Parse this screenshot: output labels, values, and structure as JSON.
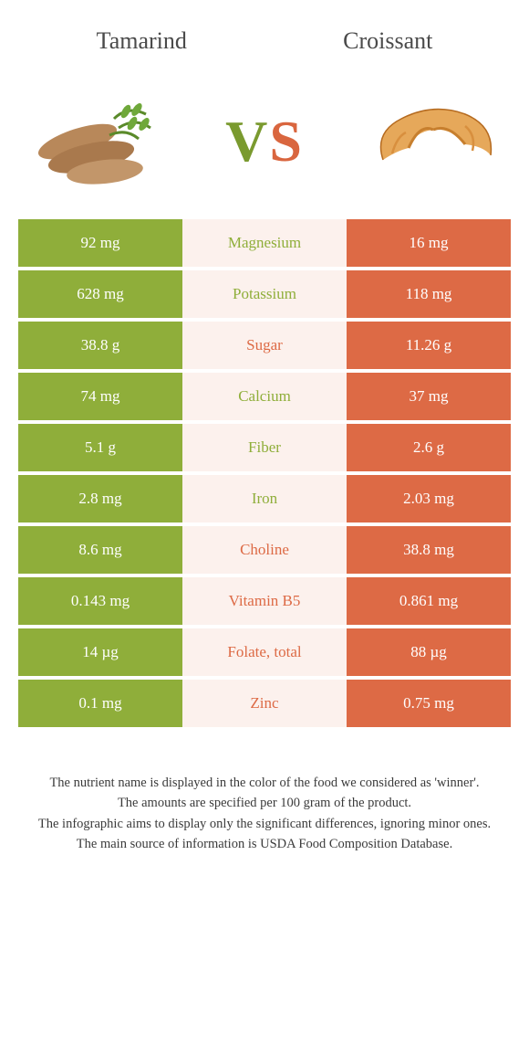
{
  "foodA": {
    "name": "Tamarind",
    "color": "#8fae3a"
  },
  "foodB": {
    "name": "Croissant",
    "color": "#dd6a45"
  },
  "vs": {
    "v_color": "#7a9a2f",
    "s_color": "#d9663f"
  },
  "mid_bg": "#fcf1ed",
  "rows": [
    {
      "nutrient": "Magnesium",
      "a": "92 mg",
      "b": "16 mg",
      "winner": "a"
    },
    {
      "nutrient": "Potassium",
      "a": "628 mg",
      "b": "118 mg",
      "winner": "a"
    },
    {
      "nutrient": "Sugar",
      "a": "38.8 g",
      "b": "11.26 g",
      "winner": "b"
    },
    {
      "nutrient": "Calcium",
      "a": "74 mg",
      "b": "37 mg",
      "winner": "a"
    },
    {
      "nutrient": "Fiber",
      "a": "5.1 g",
      "b": "2.6 g",
      "winner": "a"
    },
    {
      "nutrient": "Iron",
      "a": "2.8 mg",
      "b": "2.03 mg",
      "winner": "a"
    },
    {
      "nutrient": "Choline",
      "a": "8.6 mg",
      "b": "38.8 mg",
      "winner": "b"
    },
    {
      "nutrient": "Vitamin B5",
      "a": "0.143 mg",
      "b": "0.861 mg",
      "winner": "b"
    },
    {
      "nutrient": "Folate, total",
      "a": "14 µg",
      "b": "88 µg",
      "winner": "b"
    },
    {
      "nutrient": "Zinc",
      "a": "0.1 mg",
      "b": "0.75 mg",
      "winner": "b"
    }
  ],
  "footer": {
    "l1": "The nutrient name is displayed in the color of the food we considered as 'winner'.",
    "l2": "The amounts are specified per 100 gram of the product.",
    "l3": "The infographic aims to display only the significant differences, ignoring minor ones.",
    "l4": "The main source of information is USDA Food Composition Database."
  }
}
